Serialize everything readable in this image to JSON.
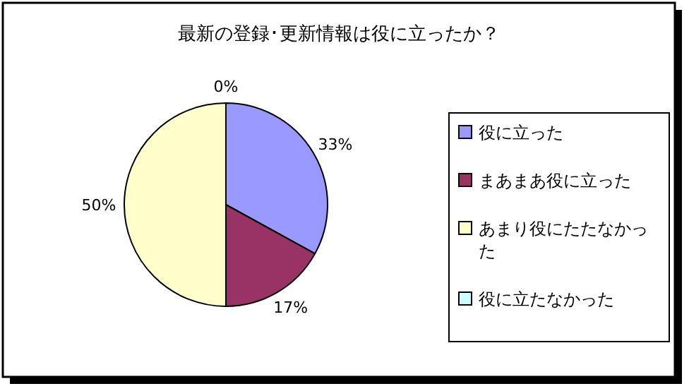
{
  "chart_data": {
    "type": "pie",
    "title": "最新の登録･更新情報は役に立ったか？",
    "categories": [
      "役に立った",
      "まあまあ役に立った",
      "あまり役にたたなかった",
      "役に立たなかった"
    ],
    "values": [
      33,
      17,
      50,
      0
    ],
    "colors": [
      "#9999ff",
      "#993366",
      "#ffffcc",
      "#ccffff"
    ],
    "value_labels": [
      "33%",
      "17%",
      "50%",
      "0%"
    ],
    "legend": "right"
  }
}
